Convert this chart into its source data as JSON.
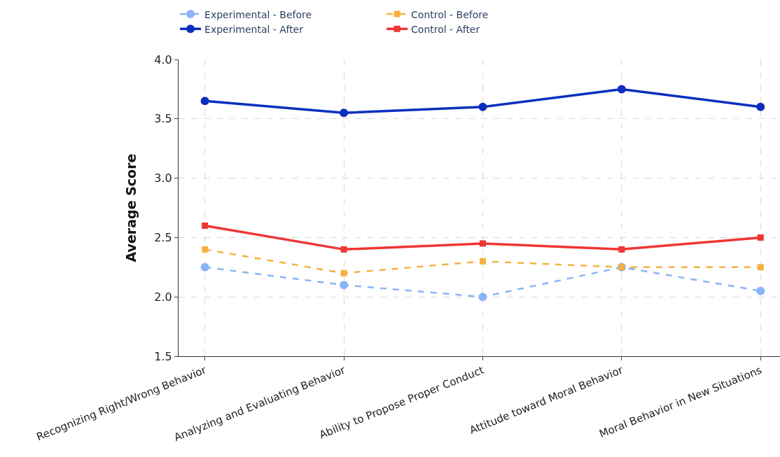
{
  "chart_data": {
    "type": "line",
    "ylabel": "Average Score",
    "categories": [
      "Recognizing Right/Wrong Behavior",
      "Analyzing and Evaluating Behavior",
      "Ability to Propose Proper Conduct",
      "Attitude toward Moral Behavior",
      "Moral Behavior in New Situations"
    ],
    "series": [
      {
        "name": "Experimental - Before",
        "color": "#8ab4f8",
        "values": [
          2.25,
          2.1,
          2.0,
          2.25,
          2.05
        ],
        "marker": "circle",
        "line_style": "dashed"
      },
      {
        "name": "Control - Before",
        "color": "#f5b041",
        "values": [
          2.4,
          2.2,
          2.3,
          2.25,
          2.25
        ],
        "marker": "square",
        "line_style": "dashed"
      },
      {
        "name": "Experimental - After",
        "color": "#0a2fbf",
        "values": [
          3.65,
          3.55,
          3.6,
          3.75,
          3.6
        ],
        "marker": "circle",
        "line_style": "solid"
      },
      {
        "name": "Control - After",
        "color": "#f03535",
        "values": [
          2.6,
          2.4,
          2.45,
          2.4,
          2.5
        ],
        "marker": "square",
        "line_style": "solid"
      }
    ],
    "ylim": [
      1.5,
      4.0
    ],
    "yticks": [
      1.5,
      {
        "value": 2,
        "label": "2.0"
      },
      2.5,
      {
        "value": 3,
        "label": "3.0"
      },
      3.5,
      {
        "value": 4,
        "label": "4.0"
      }
    ],
    "grid": true,
    "legend": "top"
  }
}
